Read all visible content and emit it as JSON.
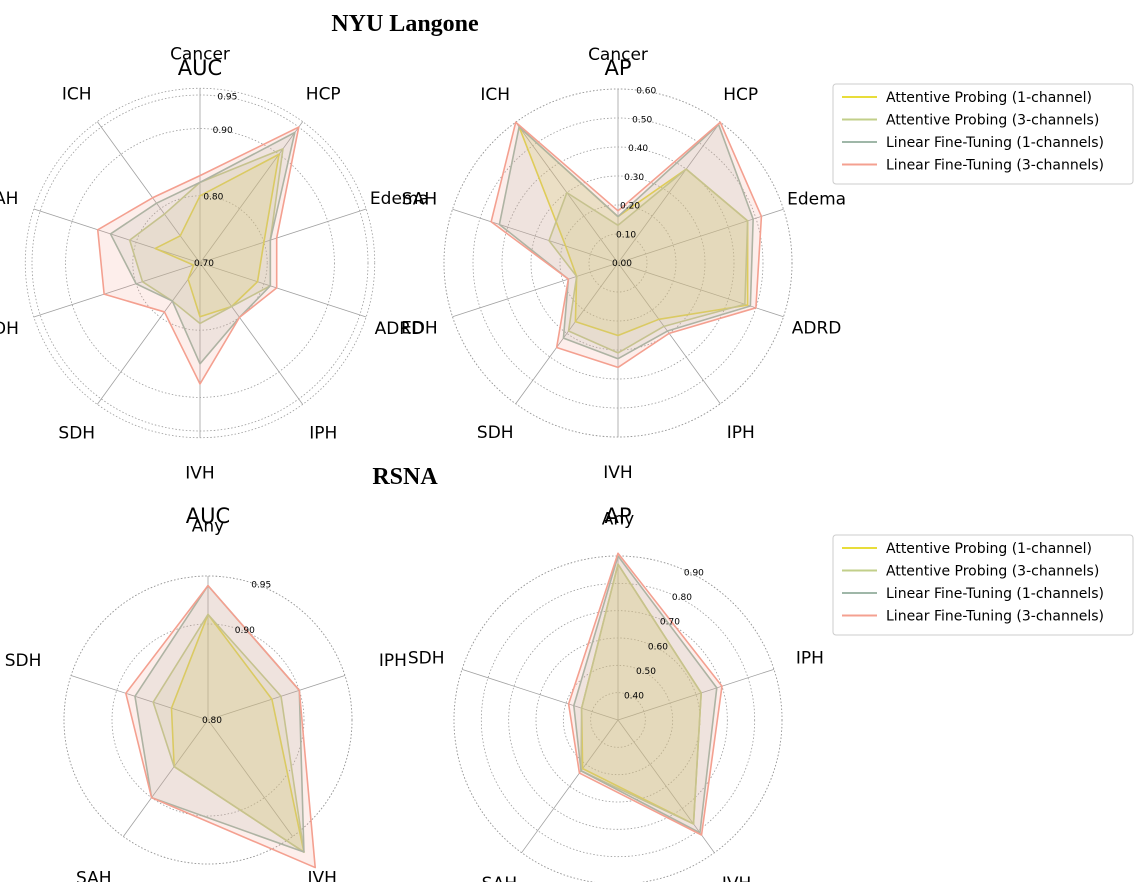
{
  "sections": [
    {
      "title": "NYU Langone"
    },
    {
      "title": "RSNA"
    }
  ],
  "legend": [
    {
      "label": "Attentive Probing (1-channel)",
      "color": "#e8dd3a"
    },
    {
      "label": "Attentive Probing (3-channels)",
      "color": "#c2cf8a"
    },
    {
      "label": "Linear Fine-Tuning (1-channels)",
      "color": "#9fb7a8"
    },
    {
      "label": "Linear Fine-Tuning (3-channels)",
      "color": "#f4a090"
    }
  ],
  "chart_data": [
    {
      "type": "radar",
      "section": "NYU Langone",
      "title": "AUC",
      "axes": [
        "Cancer",
        "HCP",
        "Edema",
        "ADRD",
        "IPH",
        "IVH",
        "SDH",
        "EDH",
        "SAH",
        "ICH"
      ],
      "rlim": [
        0.7,
        0.95
      ],
      "rticks": [
        0.7,
        0.8,
        0.9,
        0.95
      ],
      "rtick_labels": [
        "0.70",
        "0.80",
        "0.90",
        "0.95"
      ],
      "series": [
        {
          "name": "Attentive Probing (1-channel)",
          "values": [
            0.8,
            0.9,
            0.8,
            0.79,
            0.78,
            0.78,
            0.73,
            0.71,
            0.77,
            0.75
          ]
        },
        {
          "name": "Attentive Probing (3-channels)",
          "values": [
            0.82,
            0.91,
            0.81,
            0.81,
            0.78,
            0.79,
            0.77,
            0.79,
            0.81,
            0.79
          ]
        },
        {
          "name": "Linear Fine-Tuning (1-channels)",
          "values": [
            0.82,
            0.94,
            0.81,
            0.81,
            0.8,
            0.85,
            0.77,
            0.8,
            0.84,
            0.81
          ]
        },
        {
          "name": "Linear Fine-Tuning (3-channels)",
          "values": [
            0.83,
            0.95,
            0.82,
            0.82,
            0.8,
            0.88,
            0.79,
            0.85,
            0.86,
            0.82
          ]
        }
      ]
    },
    {
      "type": "radar",
      "section": "NYU Langone",
      "title": "AP",
      "axes": [
        "Cancer",
        "HCP",
        "Edema",
        "ADRD",
        "IPH",
        "IVH",
        "SDH",
        "EDH",
        "SAH",
        "ICH"
      ],
      "rlim": [
        0.0,
        0.6
      ],
      "rticks": [
        0.0,
        0.1,
        0.2,
        0.3,
        0.4,
        0.5,
        0.6
      ],
      "rtick_labels": [
        "0.00",
        "0.10",
        "0.20",
        "0.30",
        "0.40",
        "0.50",
        "0.60"
      ],
      "series": [
        {
          "name": "Attentive Probing (1-channel)",
          "values": [
            0.16,
            0.4,
            0.47,
            0.47,
            0.24,
            0.25,
            0.25,
            0.15,
            0.19,
            0.58
          ]
        },
        {
          "name": "Attentive Probing (3-channels)",
          "values": [
            0.13,
            0.4,
            0.47,
            0.46,
            0.27,
            0.31,
            0.29,
            0.15,
            0.25,
            0.3
          ]
        },
        {
          "name": "Linear Fine-Tuning (1-channels)",
          "values": [
            0.16,
            0.59,
            0.49,
            0.48,
            0.29,
            0.33,
            0.32,
            0.18,
            0.43,
            0.58
          ]
        },
        {
          "name": "Linear Fine-Tuning (3-channels)",
          "values": [
            0.18,
            0.6,
            0.52,
            0.5,
            0.3,
            0.36,
            0.36,
            0.18,
            0.46,
            0.6
          ]
        }
      ]
    },
    {
      "type": "radar",
      "section": "RSNA",
      "title": "AUC",
      "axes": [
        "Any",
        "IPH",
        "IVH",
        "SAH",
        "SDH"
      ],
      "rlim": [
        0.8,
        0.95
      ],
      "rticks": [
        0.8,
        0.9,
        0.95
      ],
      "rtick_labels": [
        "0.80",
        "0.90",
        "0.95"
      ],
      "series": [
        {
          "name": "Attentive Probing (1-channel)",
          "values": [
            0.91,
            0.87,
            0.97,
            0.86,
            0.84
          ]
        },
        {
          "name": "Attentive Probing (3-channels)",
          "values": [
            0.91,
            0.88,
            0.97,
            0.86,
            0.86
          ]
        },
        {
          "name": "Linear Fine-Tuning (1-channels)",
          "values": [
            0.94,
            0.9,
            0.97,
            0.9,
            0.88
          ]
        },
        {
          "name": "Linear Fine-Tuning (3-channels)",
          "values": [
            0.94,
            0.9,
            0.99,
            0.9,
            0.89
          ]
        }
      ]
    },
    {
      "type": "radar",
      "section": "RSNA",
      "title": "AP",
      "axes": [
        "Any",
        "IPH",
        "IVH",
        "SAH",
        "SDH"
      ],
      "rlim": [
        0.3,
        0.9
      ],
      "rticks": [
        0.4,
        0.5,
        0.6,
        0.7,
        0.8,
        0.9
      ],
      "rtick_labels": [
        "0.40",
        "0.50",
        "0.60",
        "0.70",
        "0.80",
        "0.90"
      ],
      "series": [
        {
          "name": "Attentive Probing (1-channel)",
          "values": [
            0.87,
            0.62,
            0.77,
            0.52,
            0.44
          ]
        },
        {
          "name": "Attentive Probing (3-channels)",
          "values": [
            0.87,
            0.62,
            0.77,
            0.53,
            0.44
          ]
        },
        {
          "name": "Linear Fine-Tuning (1-channels)",
          "values": [
            0.9,
            0.68,
            0.81,
            0.53,
            0.47
          ]
        },
        {
          "name": "Linear Fine-Tuning (3-channels)",
          "values": [
            0.91,
            0.7,
            0.82,
            0.54,
            0.49
          ]
        }
      ]
    }
  ]
}
